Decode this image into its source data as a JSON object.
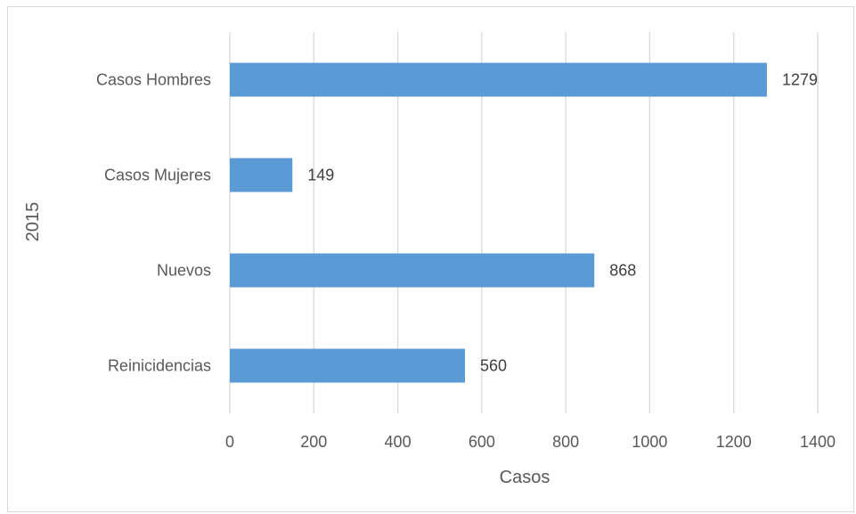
{
  "chart_data": {
    "type": "bar",
    "orientation": "horizontal",
    "title": "",
    "xlabel": "Casos",
    "ylabel": "2015",
    "categories": [
      "Casos Hombres",
      "Casos Mujeres",
      "Nuevos",
      "Reinicidencias"
    ],
    "values": [
      1279,
      149,
      868,
      560
    ],
    "xlim": [
      0,
      1400
    ],
    "xticks": [
      0,
      200,
      400,
      600,
      800,
      1000,
      1200,
      1400
    ],
    "xtick_labels": [
      "0",
      "200",
      "400",
      "600",
      "800",
      "1000",
      "1200",
      "1400"
    ],
    "data_labels": [
      "1279",
      "149",
      "868",
      "560"
    ],
    "grid": "vertical",
    "legend": "none",
    "bar_color": "#5b9bd5",
    "grid_color": "#d9d9d9"
  }
}
